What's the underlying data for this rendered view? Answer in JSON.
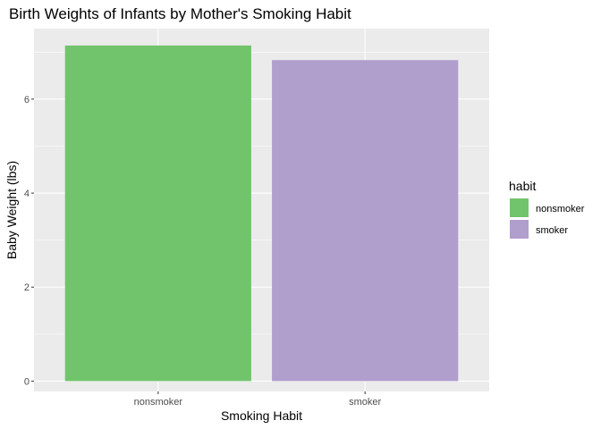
{
  "chart_data": {
    "type": "bar",
    "title": "Birth Weights of Infants by Mother's Smoking Habit",
    "xlabel": "Smoking Habit",
    "ylabel": "Baby Weight (lbs)",
    "categories": [
      "nonsmoker",
      "smoker"
    ],
    "values": [
      7.14,
      6.83
    ],
    "colors": [
      "#72c46c",
      "#b09ecd"
    ],
    "ylim": [
      -0.22,
      7.5
    ],
    "yticks": [
      0,
      2,
      4,
      6
    ],
    "grid": true,
    "legend": {
      "title": "habit",
      "position": "right",
      "entries": [
        "nonsmoker",
        "smoker"
      ]
    }
  }
}
